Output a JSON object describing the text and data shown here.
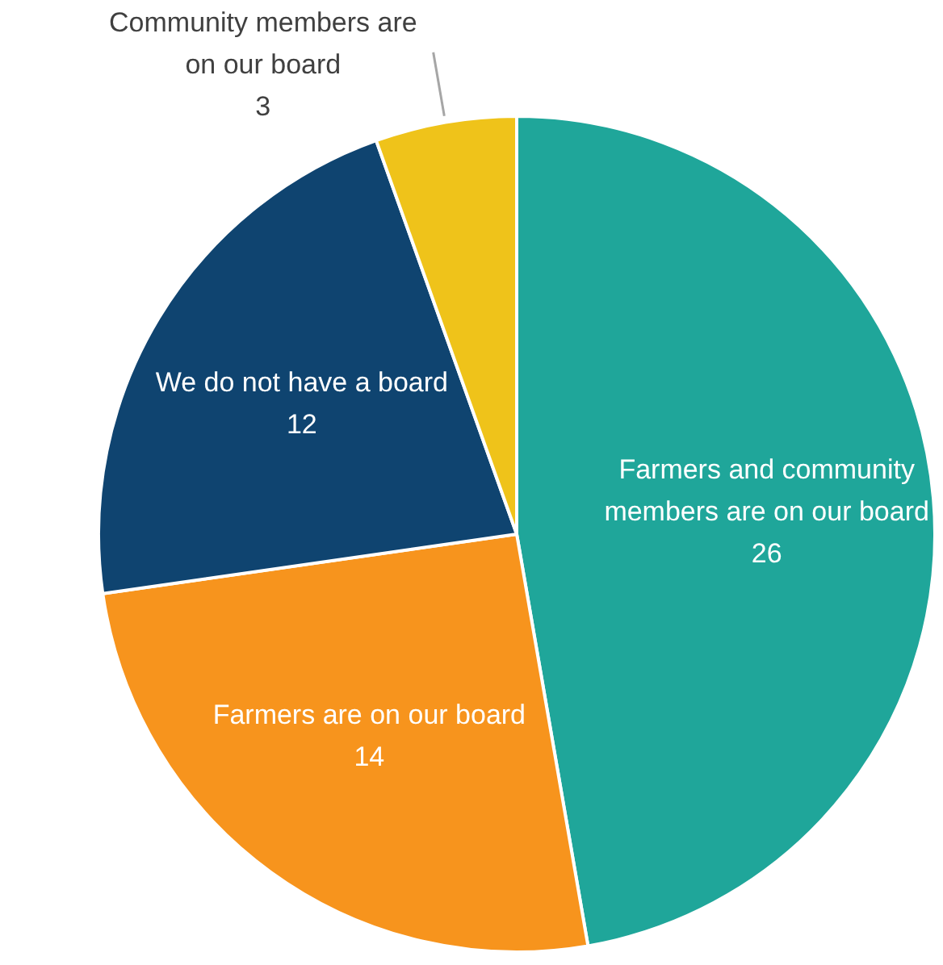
{
  "chart_data": {
    "type": "pie",
    "categories": [
      "Farmers and community members are on our board",
      "Farmers are on our board",
      "We do not have a board",
      "Community members are on our board"
    ],
    "values": [
      26,
      14,
      12,
      3
    ],
    "colors": [
      "#1fa69a",
      "#f7941d",
      "#0f4470",
      "#efc31a"
    ],
    "data_labels": true,
    "legend": false
  }
}
